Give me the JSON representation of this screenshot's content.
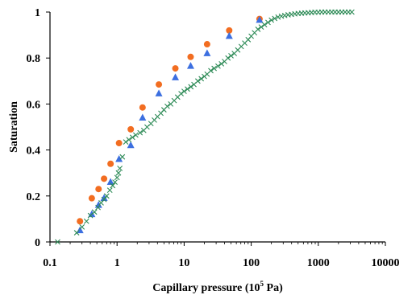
{
  "chart_data": {
    "type": "scatter",
    "title": "",
    "xlabel_prefix": "Capillary pressure (10",
    "xlabel_sup": "5",
    "xlabel_suffix": " Pa)",
    "ylabel": "Saturation",
    "xscale": "log",
    "xlim": [
      0.1,
      10000
    ],
    "ylim": [
      0,
      1
    ],
    "x_ticks": [
      0.1,
      1,
      10,
      100,
      1000,
      10000
    ],
    "x_tick_labels": [
      "0.1",
      "1",
      "10",
      "100",
      "1000",
      "10000"
    ],
    "y_ticks": [
      0,
      0.2,
      0.4,
      0.6,
      0.8,
      1
    ],
    "y_tick_labels": [
      "0",
      "0.2",
      "0.4",
      "0.6",
      "0.8",
      "1"
    ],
    "grid": false,
    "legend": "none",
    "series": [
      {
        "marker": "circle",
        "color": "#f26d21",
        "x": [
          0.28,
          0.42,
          0.53,
          0.64,
          0.8,
          1.07,
          1.6,
          2.4,
          4.2,
          7.4,
          12.5,
          22,
          47,
          133
        ],
        "y": [
          0.09,
          0.19,
          0.23,
          0.275,
          0.34,
          0.43,
          0.49,
          0.585,
          0.685,
          0.755,
          0.805,
          0.86,
          0.92,
          0.97
        ]
      },
      {
        "marker": "triangle",
        "color": "#3c6fe0",
        "x": [
          0.28,
          0.42,
          0.53,
          0.64,
          0.8,
          1.07,
          1.6,
          2.4,
          4.2,
          7.4,
          12.5,
          22,
          47,
          133
        ],
        "y": [
          0.05,
          0.12,
          0.16,
          0.19,
          0.26,
          0.36,
          0.42,
          0.54,
          0.645,
          0.715,
          0.765,
          0.82,
          0.895,
          0.965
        ]
      },
      {
        "marker": "x",
        "color": "#2e8b57",
        "x": [
          0.13,
          0.25,
          0.3,
          0.35,
          0.4,
          0.46,
          0.52,
          0.58,
          0.64,
          0.7,
          0.78,
          0.86,
          0.93,
          1.0,
          1.05,
          1.1,
          1.2,
          1.35,
          1.5,
          1.7,
          1.9,
          2.2,
          2.5,
          2.8,
          3.2,
          3.6,
          4.0,
          4.5,
          5.0,
          5.6,
          6.3,
          7.1,
          8.0,
          9.0,
          10,
          11.2,
          12.6,
          14,
          16,
          18,
          20,
          22,
          25,
          28,
          32,
          36,
          40,
          45,
          50,
          56,
          63,
          71,
          80,
          90,
          100,
          112,
          126,
          141,
          158,
          178,
          200,
          224,
          251,
          282,
          316,
          355,
          398,
          447,
          501,
          562,
          631,
          708,
          794,
          891,
          1000,
          1122,
          1259,
          1413,
          1585,
          1778,
          1995,
          2239,
          2512,
          2818,
          3162
        ],
        "y": [
          0.0,
          0.04,
          0.065,
          0.09,
          0.115,
          0.13,
          0.15,
          0.17,
          0.185,
          0.2,
          0.225,
          0.245,
          0.26,
          0.28,
          0.3,
          0.32,
          0.37,
          0.435,
          0.445,
          0.455,
          0.465,
          0.475,
          0.485,
          0.5,
          0.515,
          0.53,
          0.545,
          0.56,
          0.575,
          0.59,
          0.6,
          0.615,
          0.63,
          0.645,
          0.655,
          0.665,
          0.675,
          0.685,
          0.7,
          0.71,
          0.72,
          0.73,
          0.745,
          0.755,
          0.765,
          0.775,
          0.785,
          0.8,
          0.81,
          0.82,
          0.835,
          0.85,
          0.865,
          0.88,
          0.895,
          0.91,
          0.925,
          0.935,
          0.945,
          0.955,
          0.965,
          0.972,
          0.978,
          0.982,
          0.985,
          0.988,
          0.99,
          0.992,
          0.994,
          0.995,
          0.996,
          0.997,
          0.998,
          0.999,
          0.999,
          1.0,
          1.0,
          1.0,
          1.0,
          1.0,
          1.0,
          1.0,
          1.0,
          1.0,
          1.0
        ]
      }
    ]
  }
}
